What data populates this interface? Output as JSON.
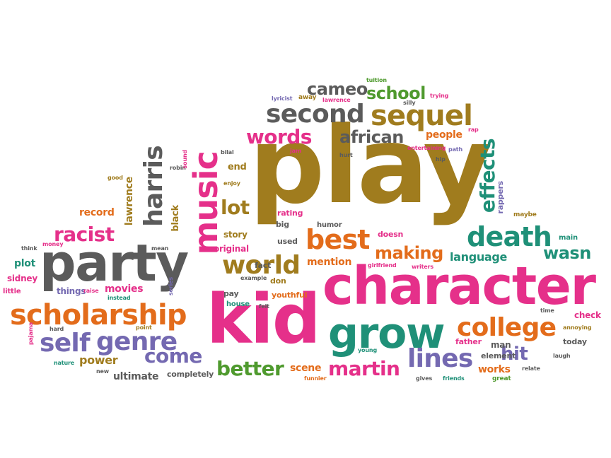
{
  "palette": {
    "pink": "#e5308a",
    "olive": "#a07c1e",
    "green": "#4f9a2e",
    "teal": "#1f9078",
    "orange": "#e36c1b",
    "purple": "#7469b1",
    "gray": "#5b5b5b"
  },
  "words": [
    {
      "text": "play",
      "color": "olive"
    },
    {
      "text": "character",
      "color": "pink"
    },
    {
      "text": "kid",
      "color": "pink"
    },
    {
      "text": "party",
      "color": "gray"
    },
    {
      "text": "grow",
      "color": "teal"
    },
    {
      "text": "music",
      "color": "pink"
    },
    {
      "text": "scholarship",
      "color": "orange"
    },
    {
      "text": "death",
      "color": "teal"
    },
    {
      "text": "second",
      "color": "gray"
    },
    {
      "text": "sequel",
      "color": "olive"
    },
    {
      "text": "college",
      "color": "orange"
    },
    {
      "text": "self",
      "color": "purple"
    },
    {
      "text": "genre",
      "color": "purple"
    },
    {
      "text": "best",
      "color": "orange"
    },
    {
      "text": "harris",
      "color": "gray"
    },
    {
      "text": "world",
      "color": "olive"
    },
    {
      "text": "lines",
      "color": "purple"
    },
    {
      "text": "effects",
      "color": "teal"
    },
    {
      "text": "racist",
      "color": "pink"
    },
    {
      "text": "words",
      "color": "pink"
    },
    {
      "text": "martin",
      "color": "pink"
    },
    {
      "text": "better",
      "color": "green"
    },
    {
      "text": "come",
      "color": "purple"
    },
    {
      "text": "making",
      "color": "orange"
    },
    {
      "text": "lot",
      "color": "olive"
    },
    {
      "text": "cameo",
      "color": "gray"
    },
    {
      "text": "school",
      "color": "green"
    },
    {
      "text": "african",
      "color": "gray"
    },
    {
      "text": "wasn",
      "color": "teal"
    },
    {
      "text": "hit",
      "color": "purple"
    },
    {
      "text": "power",
      "color": "olive"
    },
    {
      "text": "movies",
      "color": "pink"
    },
    {
      "text": "language",
      "color": "teal"
    },
    {
      "text": "mention",
      "color": "orange"
    },
    {
      "text": "works",
      "color": "orange"
    },
    {
      "text": "ultimate",
      "color": "gray"
    },
    {
      "text": "scene",
      "color": "orange"
    },
    {
      "text": "plot",
      "color": "teal"
    },
    {
      "text": "record",
      "color": "orange"
    },
    {
      "text": "people",
      "color": "orange"
    },
    {
      "text": "end",
      "color": "olive"
    },
    {
      "text": "story",
      "color": "olive"
    },
    {
      "text": "original",
      "color": "pink"
    },
    {
      "text": "lawrence",
      "color": "olive"
    },
    {
      "text": "black",
      "color": "olive"
    },
    {
      "text": "sidney",
      "color": "pink"
    },
    {
      "text": "things",
      "color": "purple"
    },
    {
      "text": "check",
      "color": "pink"
    },
    {
      "text": "today",
      "color": "gray"
    },
    {
      "text": "man",
      "color": "gray"
    },
    {
      "text": "father",
      "color": "pink"
    },
    {
      "text": "element",
      "color": "gray"
    },
    {
      "text": "rating",
      "color": "pink"
    },
    {
      "text": "big",
      "color": "gray"
    },
    {
      "text": "humor",
      "color": "gray"
    },
    {
      "text": "doesn",
      "color": "pink"
    },
    {
      "text": "used",
      "color": "gray"
    },
    {
      "text": "fact",
      "color": "gray"
    },
    {
      "text": "don",
      "color": "olive"
    },
    {
      "text": "youthful",
      "color": "orange"
    },
    {
      "text": "pay",
      "color": "gray"
    },
    {
      "text": "house",
      "color": "teal"
    },
    {
      "text": "completely",
      "color": "gray"
    },
    {
      "text": "main",
      "color": "teal"
    },
    {
      "text": "maybe",
      "color": "olive"
    },
    {
      "text": "rappers",
      "color": "purple"
    },
    {
      "text": "little",
      "color": "pink"
    },
    {
      "text": "think",
      "color": "gray"
    },
    {
      "text": "money",
      "color": "pink"
    },
    {
      "text": "mean",
      "color": "gray"
    },
    {
      "text": "raise",
      "color": "pink"
    },
    {
      "text": "instead",
      "color": "teal"
    },
    {
      "text": "series",
      "color": "purple"
    },
    {
      "text": "nature",
      "color": "teal"
    },
    {
      "text": "new",
      "color": "gray"
    },
    {
      "text": "point",
      "color": "olive"
    },
    {
      "text": "pajama",
      "color": "pink"
    },
    {
      "text": "hard",
      "color": "gray"
    },
    {
      "text": "good",
      "color": "olive"
    },
    {
      "text": "robin",
      "color": "gray"
    },
    {
      "text": "sound",
      "color": "pink"
    },
    {
      "text": "bilal",
      "color": "gray"
    },
    {
      "text": "enjoy",
      "color": "olive"
    },
    {
      "text": "jam",
      "color": "pink"
    },
    {
      "text": "hurt",
      "color": "gray"
    },
    {
      "text": "hip",
      "color": "gray"
    },
    {
      "text": "entertaining",
      "color": "pink"
    },
    {
      "text": "path",
      "color": "purple"
    },
    {
      "text": "rap",
      "color": "pink"
    },
    {
      "text": "trying",
      "color": "pink"
    },
    {
      "text": "tuition",
      "color": "green"
    },
    {
      "text": "silly",
      "color": "gray"
    },
    {
      "text": "lyricist",
      "color": "purple"
    },
    {
      "text": "away",
      "color": "olive"
    },
    {
      "text": "lawrence",
      "color": "pink"
    },
    {
      "text": "example",
      "color": "gray"
    },
    {
      "text": "felt",
      "color": "gray"
    },
    {
      "text": "funnier",
      "color": "orange"
    },
    {
      "text": "young",
      "color": "teal"
    },
    {
      "text": "gives",
      "color": "gray"
    },
    {
      "text": "friends",
      "color": "teal"
    },
    {
      "text": "great",
      "color": "green"
    },
    {
      "text": "relate",
      "color": "gray"
    },
    {
      "text": "laugh",
      "color": "gray"
    },
    {
      "text": "annoying",
      "color": "olive"
    },
    {
      "text": "time",
      "color": "gray"
    },
    {
      "text": "girlfriend",
      "color": "pink"
    },
    {
      "text": "writers",
      "color": "pink"
    }
  ]
}
